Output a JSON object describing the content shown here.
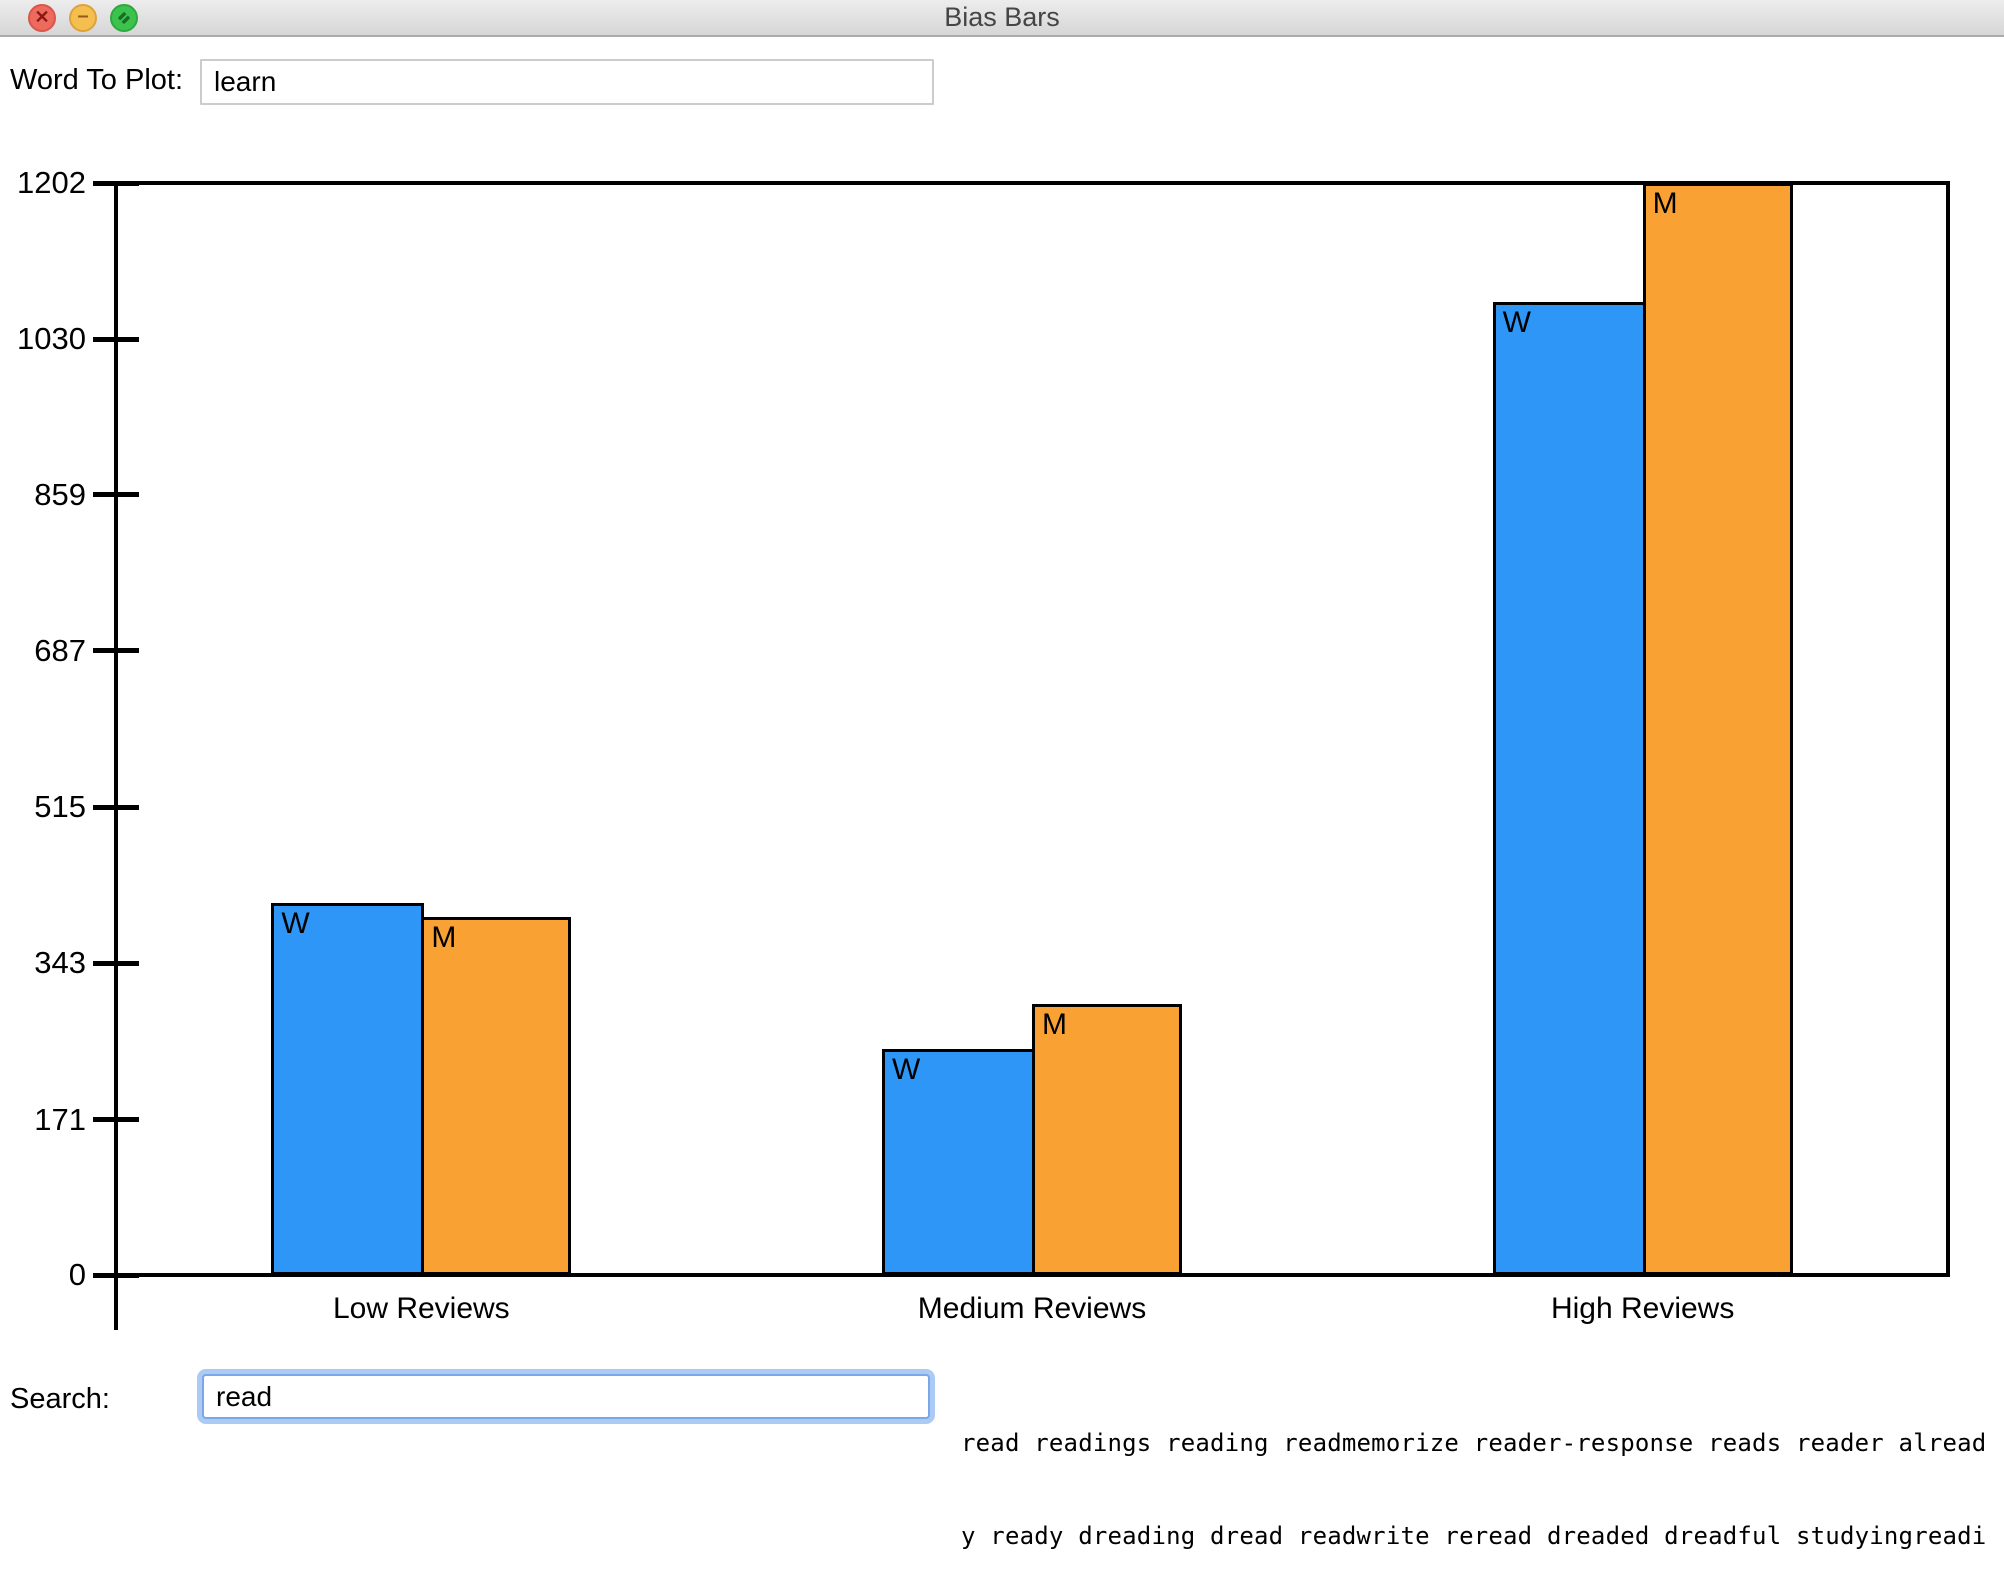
{
  "window": {
    "title": "Bias Bars"
  },
  "controls": {
    "word_to_plot_label": "Word To Plot:",
    "word_to_plot_value": "learn",
    "search_label": "Search:",
    "search_value": "read"
  },
  "results": {
    "lines": [
      "read readings reading readmemorize reader-response reads reader alread",
      "y ready dreading dread readwrite reread dreaded dreadful studyingreadi"
    ]
  },
  "chart_data": {
    "type": "bar",
    "title": "",
    "xlabel": "",
    "ylabel": "",
    "categories": [
      "Low Reviews",
      "Medium Reviews",
      "High Reviews"
    ],
    "series": [
      {
        "name": "W",
        "color": "#2E96F6",
        "values": [
          410,
          249,
          1071
        ]
      },
      {
        "name": "M",
        "color": "#F9A233",
        "values": [
          394,
          298,
          1202
        ]
      }
    ],
    "yticks": [
      0,
      171,
      343,
      515,
      687,
      859,
      1030,
      1202
    ],
    "ylim": [
      0,
      1202
    ],
    "grid": false,
    "legend": "none",
    "bar_outline_color": "#000000"
  }
}
